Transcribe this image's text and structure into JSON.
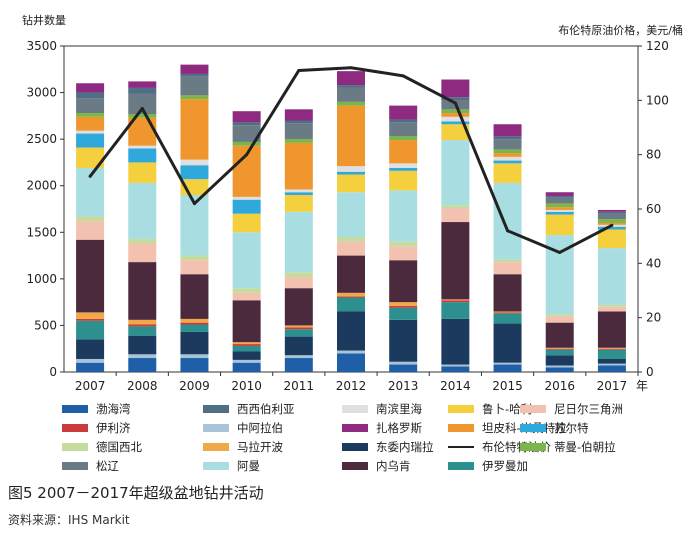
{
  "chart_data": {
    "type": "bar",
    "ylabel_left": "钻井数量",
    "ylabel_right": "布伦特原油价格，美元/桶",
    "x_unit": "年",
    "categories": [
      "2007",
      "2008",
      "2009",
      "2010",
      "2011",
      "2012",
      "2013",
      "2014",
      "2015",
      "2016",
      "2017"
    ],
    "ylim_left": [
      0,
      3500
    ],
    "yticks_left": [
      "0",
      "500",
      "1000",
      "1500",
      "2000",
      "2500",
      "3000",
      "3500"
    ],
    "ylim_right": [
      0,
      120
    ],
    "yticks_right": [
      "0",
      "20",
      "40",
      "60",
      "80",
      "100",
      "120"
    ],
    "series": [
      {
        "name": "渤海湾",
        "color": "#1f5fa8",
        "values": [
          100,
          150,
          150,
          100,
          150,
          200,
          80,
          60,
          80,
          50,
          70
        ]
      },
      {
        "name": "中阿拉伯",
        "color": "#a9c3d8",
        "values": [
          40,
          40,
          40,
          30,
          30,
          30,
          30,
          20,
          20,
          20,
          20
        ]
      },
      {
        "name": "东委内瑞拉",
        "color": "#1c3a5e",
        "values": [
          210,
          200,
          240,
          90,
          200,
          420,
          450,
          490,
          420,
          110,
          50
        ]
      },
      {
        "name": "伊罗曼加",
        "color": "#2e8f8f",
        "values": [
          200,
          100,
          80,
          60,
          80,
          150,
          130,
          180,
          110,
          60,
          100
        ]
      },
      {
        "name": "伊利济",
        "color": "#cc3b3b",
        "values": [
          20,
          20,
          20,
          20,
          20,
          10,
          20,
          20,
          10,
          10,
          10
        ]
      },
      {
        "name": "马拉开波",
        "color": "#f0a848",
        "values": [
          70,
          50,
          40,
          20,
          20,
          40,
          40,
          10,
          10,
          10,
          10
        ]
      },
      {
        "name": "内乌肯",
        "color": "#4c2a3e",
        "values": [
          780,
          620,
          480,
          450,
          400,
          400,
          450,
          830,
          400,
          270,
          390
        ]
      },
      {
        "name": "尼日尔三角洲",
        "color": "#f3c1b0",
        "values": [
          200,
          200,
          150,
          80,
          120,
          150,
          150,
          150,
          130,
          70,
          50
        ]
      },
      {
        "name": "德国西北",
        "color": "#c5dc9e",
        "values": [
          50,
          50,
          50,
          50,
          50,
          50,
          50,
          30,
          30,
          20,
          20
        ]
      },
      {
        "name": "阿曼",
        "color": "#a8dde2",
        "values": [
          520,
          600,
          650,
          600,
          650,
          480,
          550,
          700,
          820,
          850,
          610
        ]
      },
      {
        "name": "鲁卜-哈利",
        "color": "#f4d03f",
        "values": [
          220,
          220,
          170,
          200,
          180,
          190,
          210,
          170,
          210,
          220,
          200
        ]
      },
      {
        "name": "苏尔特",
        "color": "#2fa8dc",
        "values": [
          150,
          150,
          150,
          150,
          30,
          30,
          30,
          30,
          30,
          30,
          30
        ]
      },
      {
        "name": "南滨里海",
        "color": "#e0e0e0",
        "values": [
          30,
          30,
          60,
          30,
          30,
          60,
          50,
          50,
          40,
          20,
          20
        ]
      },
      {
        "name": "坦皮科-米桑特拉",
        "color": "#f0962e",
        "values": [
          150,
          300,
          650,
          550,
          500,
          650,
          250,
          40,
          40,
          30,
          20
        ]
      },
      {
        "name": "蒂曼-伯朝拉",
        "color": "#7ab648",
        "values": [
          40,
          40,
          40,
          40,
          40,
          40,
          40,
          40,
          40,
          40,
          40
        ]
      },
      {
        "name": "松辽",
        "color": "#6b7b86",
        "values": [
          160,
          220,
          200,
          180,
          170,
          150,
          150,
          100,
          110,
          60,
          60
        ]
      },
      {
        "name": "西西伯利亚",
        "color": "#4f6f86",
        "values": [
          60,
          60,
          30,
          30,
          30,
          30,
          30,
          30,
          30,
          20,
          20
        ]
      },
      {
        "name": "扎格罗斯",
        "color": "#8e2a80",
        "values": [
          100,
          70,
          100,
          120,
          120,
          150,
          150,
          190,
          130,
          40,
          20
        ]
      }
    ],
    "line": {
      "name": "布伦特特油价",
      "color": "#222222",
      "values": [
        72,
        97,
        62,
        80,
        111,
        112,
        109,
        99,
        52,
        44,
        54
      ]
    },
    "legend": [
      [
        "渤海湾",
        "西西伯利亚",
        "南滨里海",
        "鲁卜-哈利",
        "尼日尔三角洲"
      ],
      [
        "伊利济",
        "中阿拉伯",
        "扎格罗斯",
        "坦皮科-米桑特拉",
        "苏尔特"
      ],
      [
        "德国西北",
        "马拉开波",
        "东委内瑞拉",
        "布伦特特油价",
        "蒂曼-伯朝拉"
      ],
      [
        "松辽",
        "阿曼",
        "内乌肯",
        "伊罗曼加"
      ]
    ]
  },
  "caption": "图5   2007－2017年超级盆地钻井活动",
  "source": "资料来源：IHS Markit"
}
